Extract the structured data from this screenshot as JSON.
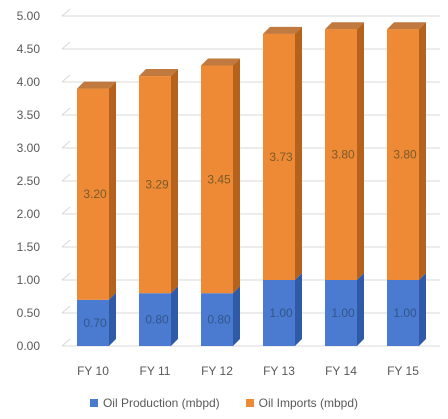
{
  "chart_data": {
    "type": "bar",
    "stacked": true,
    "style": "3d",
    "categories": [
      "FY 10",
      "FY 11",
      "FY 12",
      "FY 13",
      "FY 14",
      "FY 15"
    ],
    "series": [
      {
        "name": "Oil Production (mbpd)",
        "color": "#4a7bd1",
        "side_color": "#2f5aa8",
        "values": [
          0.7,
          0.8,
          0.8,
          1.0,
          1.0,
          1.0
        ],
        "labels": [
          "0.70",
          "0.80",
          "0.80",
          "1.00",
          "1.00",
          "1.00"
        ]
      },
      {
        "name": "Oil Imports (mbpd)",
        "color": "#ee8a35",
        "side_color": "#b5621d",
        "values": [
          3.2,
          3.29,
          3.45,
          3.73,
          3.8,
          3.8
        ],
        "labels": [
          "3.20",
          "3.29",
          "3.45",
          "3.73",
          "3.80",
          "3.80"
        ]
      }
    ],
    "ylim": [
      0,
      5
    ],
    "yticks": [
      "0.00",
      "0.50",
      "1.00",
      "1.50",
      "2.00",
      "2.50",
      "3.00",
      "3.50",
      "4.00",
      "4.50",
      "5.00"
    ],
    "grid": true,
    "legend": "bottom"
  }
}
